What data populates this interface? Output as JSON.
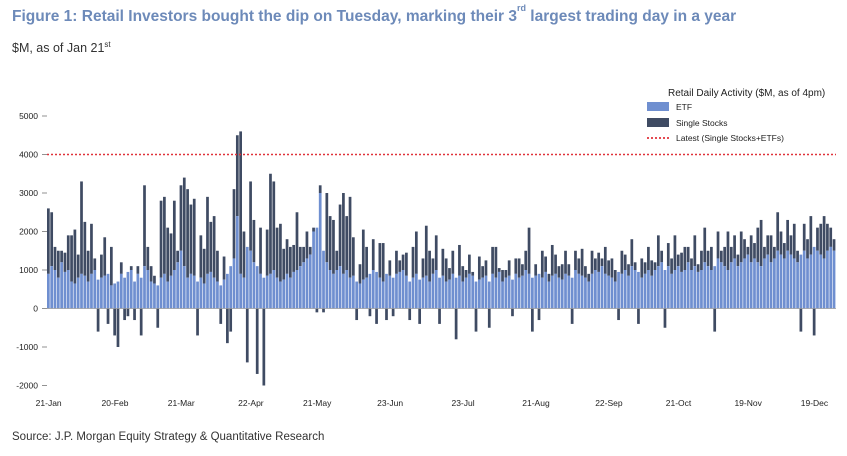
{
  "header": {
    "title_main": "Figure 1: Retail Investors bought the dip on Tuesday, marking their 3",
    "title_sup": "rd",
    "title_rest": " largest trading day in a year",
    "subtitle_main": "$M, as of Jan 21",
    "subtitle_sup": "st"
  },
  "footer": {
    "source": "Source: J.P. Morgan Equity Strategy & Quantitative Research"
  },
  "colors": {
    "etf": "#6f8fd0",
    "single": "#3f4b63",
    "latest": "#e0323a"
  },
  "chart_data": {
    "type": "bar",
    "stacked": true,
    "legend": {
      "title": "Retail Daily Activity ($M, as of 4pm)",
      "placement": "top-right",
      "entries": [
        "ETF",
        "Single Stocks",
        "Latest (Single Stocks+ETFs)"
      ]
    },
    "xlabel": "",
    "ylabel": "",
    "ylim": [
      -2000,
      5500
    ],
    "y_ticks": [
      5000,
      4000,
      3000,
      2000,
      1000,
      0,
      -1000,
      -2000
    ],
    "x_tick_labels": [
      "21-Jan",
      "20-Feb",
      "21-Mar",
      "22-Apr",
      "21-May",
      "23-Jun",
      "23-Jul",
      "21-Aug",
      "22-Sep",
      "21-Oct",
      "19-Nov",
      "19-Dec"
    ],
    "x_tick_index": [
      0,
      20,
      40,
      61,
      81,
      103,
      125,
      147,
      169,
      190,
      211,
      231
    ],
    "latest_level": 4000,
    "series": [
      {
        "name": "ETF",
        "values": [
          900,
          1100,
          1000,
          800,
          1200,
          950,
          1000,
          700,
          650,
          800,
          900,
          850,
          700,
          900,
          1000,
          750,
          800,
          850,
          900,
          600,
          650,
          700,
          900,
          800,
          950,
          1000,
          700,
          900,
          800,
          1100,
          1000,
          700,
          650,
          600,
          800,
          900,
          700,
          850,
          1000,
          1200,
          1500,
          1100,
          800,
          900,
          850,
          700,
          800,
          650,
          900,
          950,
          800,
          700,
          600,
          750,
          900,
          1100,
          1300,
          2400,
          900,
          800,
          1600,
          1500,
          1200,
          1100,
          900,
          800,
          850,
          900,
          1000,
          800,
          700,
          750,
          900,
          800,
          950,
          1000,
          1100,
          1200,
          1300,
          1400,
          2000,
          2100,
          3000,
          1500,
          1200,
          1000,
          900,
          1000,
          1100,
          900,
          1000,
          800,
          850,
          700,
          650,
          750,
          800,
          900,
          1000,
          950,
          800,
          700,
          900,
          850,
          800,
          900,
          950,
          1000,
          850,
          700,
          800,
          900,
          750,
          800,
          850,
          700,
          900,
          1000,
          800,
          850,
          700,
          750,
          900,
          800,
          850,
          700,
          800,
          900,
          850,
          700,
          750,
          800,
          850,
          700,
          900,
          800,
          950,
          700,
          800,
          850,
          750,
          900,
          800,
          850,
          1000,
          900,
          800,
          850,
          900,
          800,
          950,
          700,
          850,
          900,
          800,
          750,
          900,
          850,
          800,
          1000,
          900,
          850,
          800,
          700,
          900,
          1000,
          950,
          1100,
          900,
          850,
          800,
          700,
          950,
          900,
          1000,
          850,
          1100,
          1000,
          950,
          800,
          900,
          1000,
          850,
          1000,
          1100,
          1200,
          1000,
          1100,
          900,
          1000,
          1100,
          950,
          1000,
          1200,
          1000,
          1100,
          950,
          1000,
          1200,
          1100,
          1000,
          1100,
          1300,
          1200,
          1100,
          1000,
          1200,
          1300,
          1100,
          1200,
          1300,
          1400,
          1200,
          1300,
          1200,
          1100,
          1300,
          1400,
          1200,
          1300,
          1500,
          1400,
          1300,
          1500,
          1400,
          1300,
          1200,
          1400,
          1500,
          1300,
          1400,
          1600,
          1500,
          1400,
          1300,
          1500,
          1600,
          1500
        ],
        "series_note": "ETF values per trading day"
      },
      {
        "name": "Single Stocks",
        "values": [
          1700,
          1400,
          600,
          700,
          300,
          500,
          900,
          1200,
          1400,
          600,
          2400,
          1400,
          800,
          1300,
          300,
          -600,
          600,
          1000,
          -400,
          1000,
          -700,
          -1000,
          300,
          -300,
          -200,
          100,
          -300,
          200,
          -700,
          2100,
          600,
          400,
          200,
          -500,
          2000,
          2000,
          1400,
          1100,
          1800,
          300,
          1700,
          2300,
          2300,
          1800,
          2000,
          -700,
          1100,
          900,
          2000,
          1300,
          1600,
          800,
          -400,
          600,
          -900,
          -600,
          1800,
          2100,
          3700,
          1200,
          -1400,
          1800,
          1100,
          -1700,
          1200,
          -2000,
          1200,
          2600,
          2300,
          1300,
          1500,
          800,
          900,
          800,
          700,
          1500,
          500,
          400,
          700,
          200,
          100,
          -100,
          200,
          -100,
          1800,
          1400,
          1400,
          500,
          1600,
          2100,
          1400,
          2100,
          1000,
          -300,
          500,
          1300,
          800,
          -200,
          800,
          -400,
          900,
          1000,
          -300,
          400,
          -200,
          600,
          300,
          400,
          600,
          -300,
          800,
          1100,
          -400,
          500,
          1300,
          800,
          400,
          900,
          -400,
          700,
          600,
          300,
          600,
          -800,
          800,
          400,
          200,
          500,
          100,
          -600,
          600,
          300,
          400,
          -500,
          700,
          800,
          100,
          300,
          200,
          400,
          -200,
          400,
          500,
          300,
          500,
          1200,
          -600,
          300,
          -300,
          700,
          400,
          200,
          800,
          500,
          300,
          400,
          600,
          300,
          -400,
          500,
          400,
          700,
          300,
          200,
          600,
          300,
          500,
          200,
          700,
          400,
          500,
          300,
          -300,
          600,
          400,
          300,
          700,
          200,
          -400,
          500,
          300,
          600,
          400,
          200,
          800,
          300,
          -500,
          600,
          400,
          900,
          300,
          500,
          600,
          400,
          300,
          800,
          200,
          500,
          900,
          400,
          600,
          -600,
          700,
          300,
          500,
          1000,
          400,
          600,
          300,
          800,
          500,
          200,
          700,
          400,
          900,
          1200,
          300,
          500,
          700,
          300,
          1000,
          600,
          400,
          800,
          500,
          900,
          300,
          -600,
          700,
          500,
          1000,
          -700,
          600,
          800,
          1100,
          700,
          500,
          300,
          900,
          800,
          600,
          2500,
          800
        ]
      }
    ]
  }
}
